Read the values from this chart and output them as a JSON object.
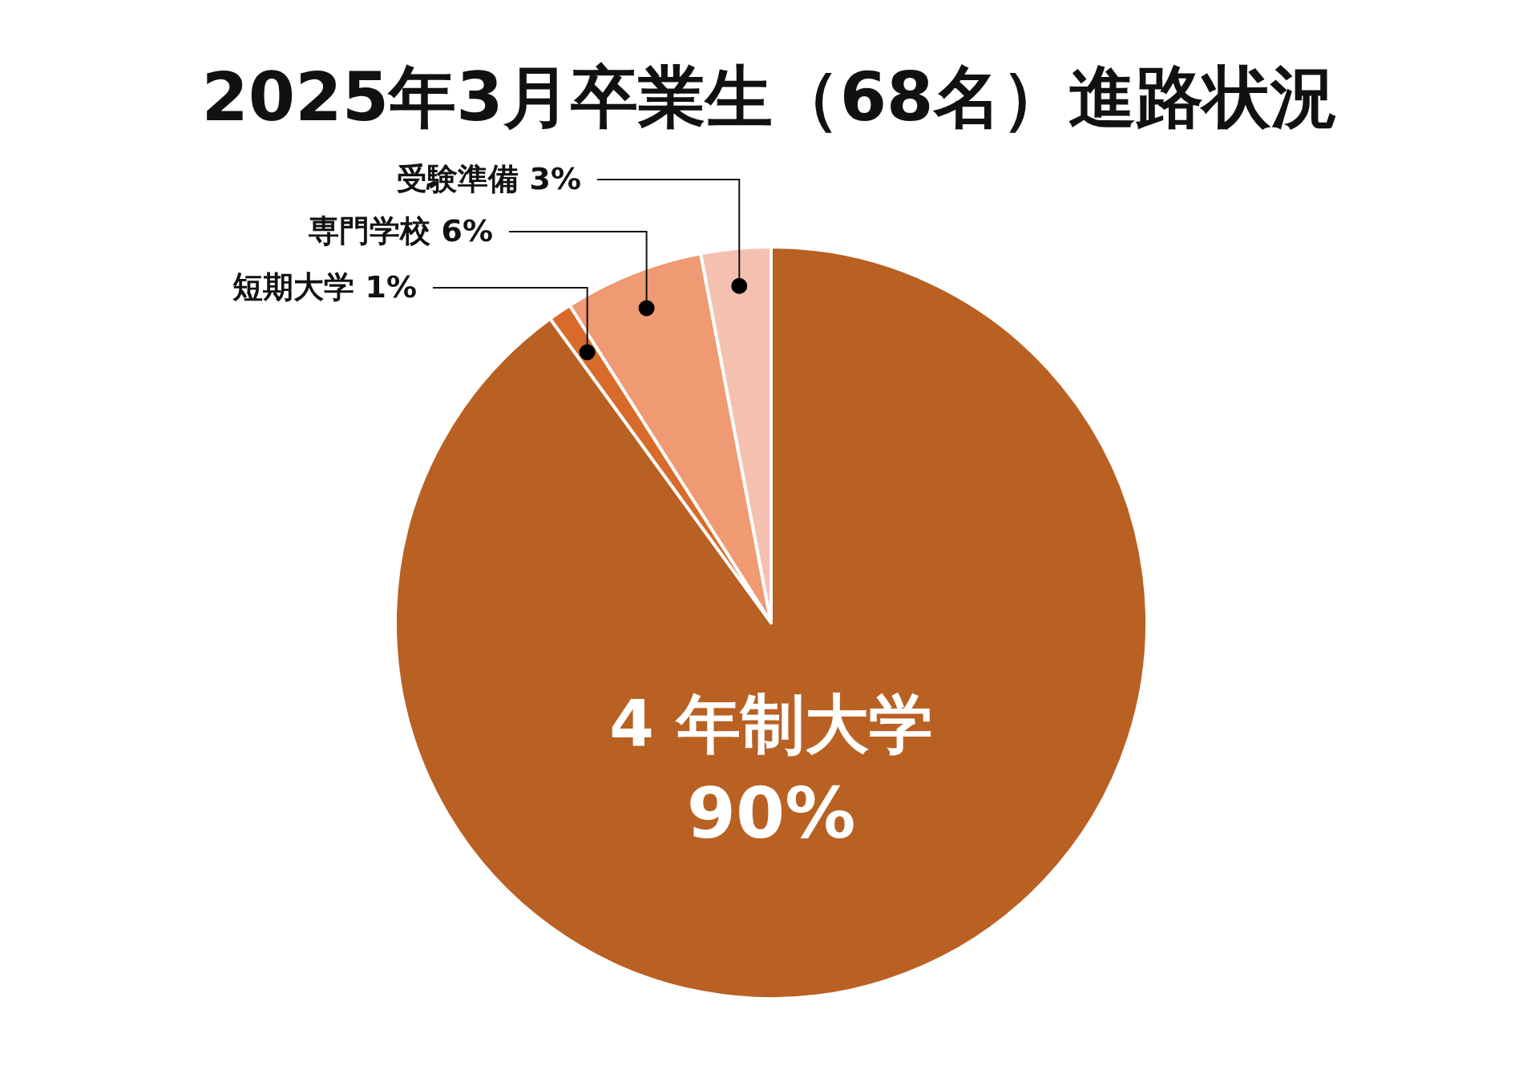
{
  "chart_data": {
    "type": "pie",
    "title": "2025年3月卒業生（68名）進路状況",
    "categories": [
      "4 年制大学",
      "短期大学",
      "専門学校",
      "受験準備"
    ],
    "values": [
      90,
      1,
      6,
      3
    ],
    "colors": [
      "#b96123",
      "#d86b2a",
      "#ef9a72",
      "#f4c1b0"
    ],
    "value_labels": [
      "90%",
      "1%",
      "6%",
      "3%"
    ]
  }
}
